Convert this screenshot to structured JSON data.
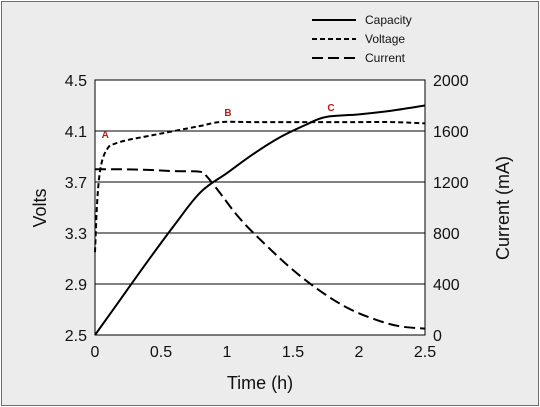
{
  "chart_data": {
    "type": "line",
    "xlabel": "Time (h)",
    "ylabel_left": "Volts",
    "ylabel_right": "Current (mA)",
    "xlim": [
      0,
      2.5
    ],
    "ylim_left": [
      2.5,
      4.5
    ],
    "ylim_right": [
      0,
      2000
    ],
    "x_ticks": [
      "0",
      "0.5",
      "1",
      "1.5",
      "2",
      "2.5"
    ],
    "y_left_ticks": [
      "2.5",
      "2.9",
      "3.3",
      "3.7",
      "4.1",
      "4.5"
    ],
    "y_right_ticks": [
      "0",
      "400",
      "800",
      "1200",
      "1600",
      "2000"
    ],
    "gridlines_y_left": [
      2.9,
      3.3,
      3.7,
      4.1
    ],
    "legend_placement": "top-right",
    "legend": [
      "Capacity",
      "Voltage",
      "Current"
    ],
    "series": [
      {
        "name": "Capacity",
        "axis": "left",
        "style": "solid",
        "x": [
          0,
          0.2,
          0.4,
          0.6,
          0.8,
          1.0,
          1.2,
          1.4,
          1.6,
          1.75,
          2.0,
          2.25,
          2.5
        ],
        "y": [
          2.5,
          2.79,
          3.08,
          3.36,
          3.62,
          3.77,
          3.92,
          4.05,
          4.15,
          4.21,
          4.23,
          4.26,
          4.3
        ]
      },
      {
        "name": "Voltage",
        "axis": "left",
        "style": "dotted",
        "x": [
          0,
          0.02,
          0.05,
          0.1,
          0.15,
          0.25,
          0.4,
          0.6,
          0.8,
          0.95,
          1.2,
          1.5,
          1.75,
          2.0,
          2.25,
          2.5
        ],
        "y": [
          3.15,
          3.6,
          3.85,
          3.97,
          4.0,
          4.03,
          4.06,
          4.1,
          4.14,
          4.17,
          4.17,
          4.17,
          4.17,
          4.17,
          4.17,
          4.16
        ]
      },
      {
        "name": "Current",
        "axis": "right",
        "style": "dashed",
        "x": [
          0,
          0.2,
          0.4,
          0.6,
          0.8,
          0.85,
          0.95,
          1.1,
          1.3,
          1.5,
          1.7,
          1.9,
          2.1,
          2.3,
          2.5
        ],
        "y": [
          1300,
          1300,
          1295,
          1285,
          1280,
          1240,
          1110,
          910,
          700,
          510,
          350,
          220,
          130,
          70,
          50
        ]
      }
    ],
    "annotations": [
      {
        "label": "A",
        "x": 0.04,
        "y": 4.0
      },
      {
        "label": "B",
        "x": 0.97,
        "y": 4.17
      },
      {
        "label": "C",
        "x": 1.75,
        "y": 4.21
      }
    ]
  }
}
